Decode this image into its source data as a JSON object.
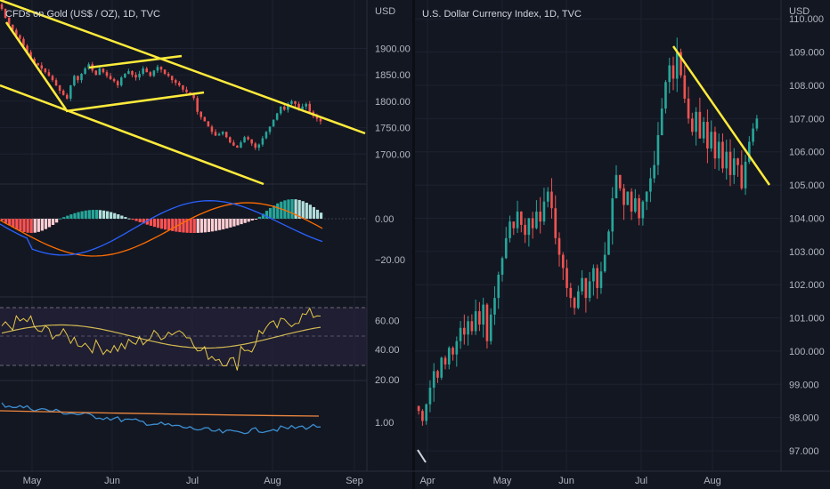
{
  "colors": {
    "background": "#131722",
    "grid": "#1e2230",
    "up": "#26a69a",
    "down": "#ef5350",
    "trendline": "#ffeb3b",
    "macd_line": "#2962ff",
    "signal_line": "#ff6d00",
    "hist_up_strong": "#26a69a",
    "hist_up_weak": "#b2dfdb",
    "hist_down_strong": "#ff5252",
    "hist_down_weak": "#ffcdd2",
    "rsi_line": "#e6c84a",
    "rsi_band": "#2a2540",
    "ratio_line": "#3d8fd1",
    "ratio_ma": "#f0883e"
  },
  "chart_data": [
    {
      "type": "candlestick",
      "title": "CFDs on Gold (US$ / OZ), 1D, TVC",
      "currency_label": "USD",
      "y_ticks": [
        "1900.00",
        "1850.00",
        "1800.00",
        "1750.00",
        "1700.00"
      ],
      "y_tick_values": [
        1900,
        1850,
        1800,
        1750,
        1700
      ],
      "ylim": [
        1655,
        1985
      ],
      "x_ticks": [
        "May",
        "Jun",
        "Jul",
        "Aug",
        "Sep"
      ],
      "close": [
        1975,
        1958,
        1945,
        1935,
        1925,
        1918,
        1905,
        1893,
        1880,
        1872,
        1868,
        1862,
        1855,
        1848,
        1840,
        1830,
        1820,
        1812,
        1805,
        1830,
        1848,
        1840,
        1852,
        1862,
        1870,
        1858,
        1850,
        1862,
        1855,
        1848,
        1842,
        1838,
        1830,
        1845,
        1852,
        1857,
        1850,
        1845,
        1852,
        1862,
        1855,
        1848,
        1858,
        1865,
        1860,
        1852,
        1848,
        1840,
        1835,
        1830,
        1822,
        1817,
        1812,
        1806,
        1780,
        1770,
        1762,
        1752,
        1742,
        1735,
        1738,
        1742,
        1732,
        1722,
        1716,
        1712,
        1722,
        1732,
        1728,
        1720,
        1712,
        1718,
        1730,
        1742,
        1752,
        1765,
        1777,
        1790,
        1784,
        1795,
        1800,
        1795,
        1785,
        1790,
        1795,
        1780,
        1772,
        1767,
        1762
      ],
      "trendlines": [
        "upper-channel",
        "lower-channel",
        "wedge-top",
        "wedge-bottom",
        "short-steep"
      ],
      "indicators": [
        {
          "name": "MACD",
          "y_ticks": [
            "0.00",
            "−20.00"
          ],
          "y_tick_values": [
            0,
            -20
          ]
        },
        {
          "name": "RSI",
          "y_ticks": [
            "60.00",
            "40.00",
            "20.00"
          ],
          "y_tick_values": [
            60,
            40,
            20
          ],
          "band": [
            30,
            70
          ]
        },
        {
          "name": "Ratio",
          "y_ticks": [
            "1.00"
          ]
        }
      ]
    },
    {
      "type": "candlestick",
      "title": "U.S. Dollar Currency Index, 1D, TVC",
      "currency_label": "USD",
      "y_ticks": [
        "110.000",
        "109.000",
        "108.000",
        "107.000",
        "106.000",
        "105.000",
        "104.000",
        "103.000",
        "102.000",
        "101.000",
        "100.000",
        "99.000",
        "98.000",
        "97.000"
      ],
      "y_tick_values": [
        110,
        109,
        108,
        107,
        106,
        105,
        104,
        103,
        102,
        101,
        100,
        99,
        98,
        97
      ],
      "ylim": [
        96.6,
        110.3
      ],
      "x_ticks": [
        "Apr",
        "May",
        "Jun",
        "Jul",
        "Aug"
      ],
      "close": [
        98.2,
        97.9,
        98.4,
        98.9,
        99.4,
        99.2,
        99.8,
        99.6,
        100.1,
        99.9,
        100.3,
        100.7,
        100.5,
        100.9,
        100.6,
        101.2,
        100.8,
        101.4,
        100.3,
        101.1,
        101.6,
        102.3,
        102.8,
        103.4,
        103.9,
        103.7,
        104.2,
        103.8,
        103.5,
        104.0,
        103.7,
        104.2,
        103.9,
        104.5,
        104.8,
        104.3,
        103.4,
        102.9,
        102.5,
        101.9,
        101.6,
        101.3,
        101.8,
        102.2,
        101.6,
        102.1,
        102.5,
        101.9,
        102.4,
        102.9,
        103.6,
        104.6,
        105.3,
        104.9,
        104.4,
        104.8,
        104.2,
        104.6,
        104.0,
        104.5,
        104.8,
        105.2,
        105.6,
        106.5,
        107.3,
        108.1,
        108.6,
        108.2,
        109.0,
        108.3,
        107.6,
        107.0,
        106.6,
        107.2,
        106.4,
        106.9,
        106.1,
        106.6,
        105.8,
        106.3,
        105.5,
        106.0,
        105.3,
        105.8,
        105.6,
        104.9,
        105.7,
        106.3,
        106.7,
        107.0
      ],
      "trendlines": [
        "descending-resistance"
      ]
    }
  ]
}
